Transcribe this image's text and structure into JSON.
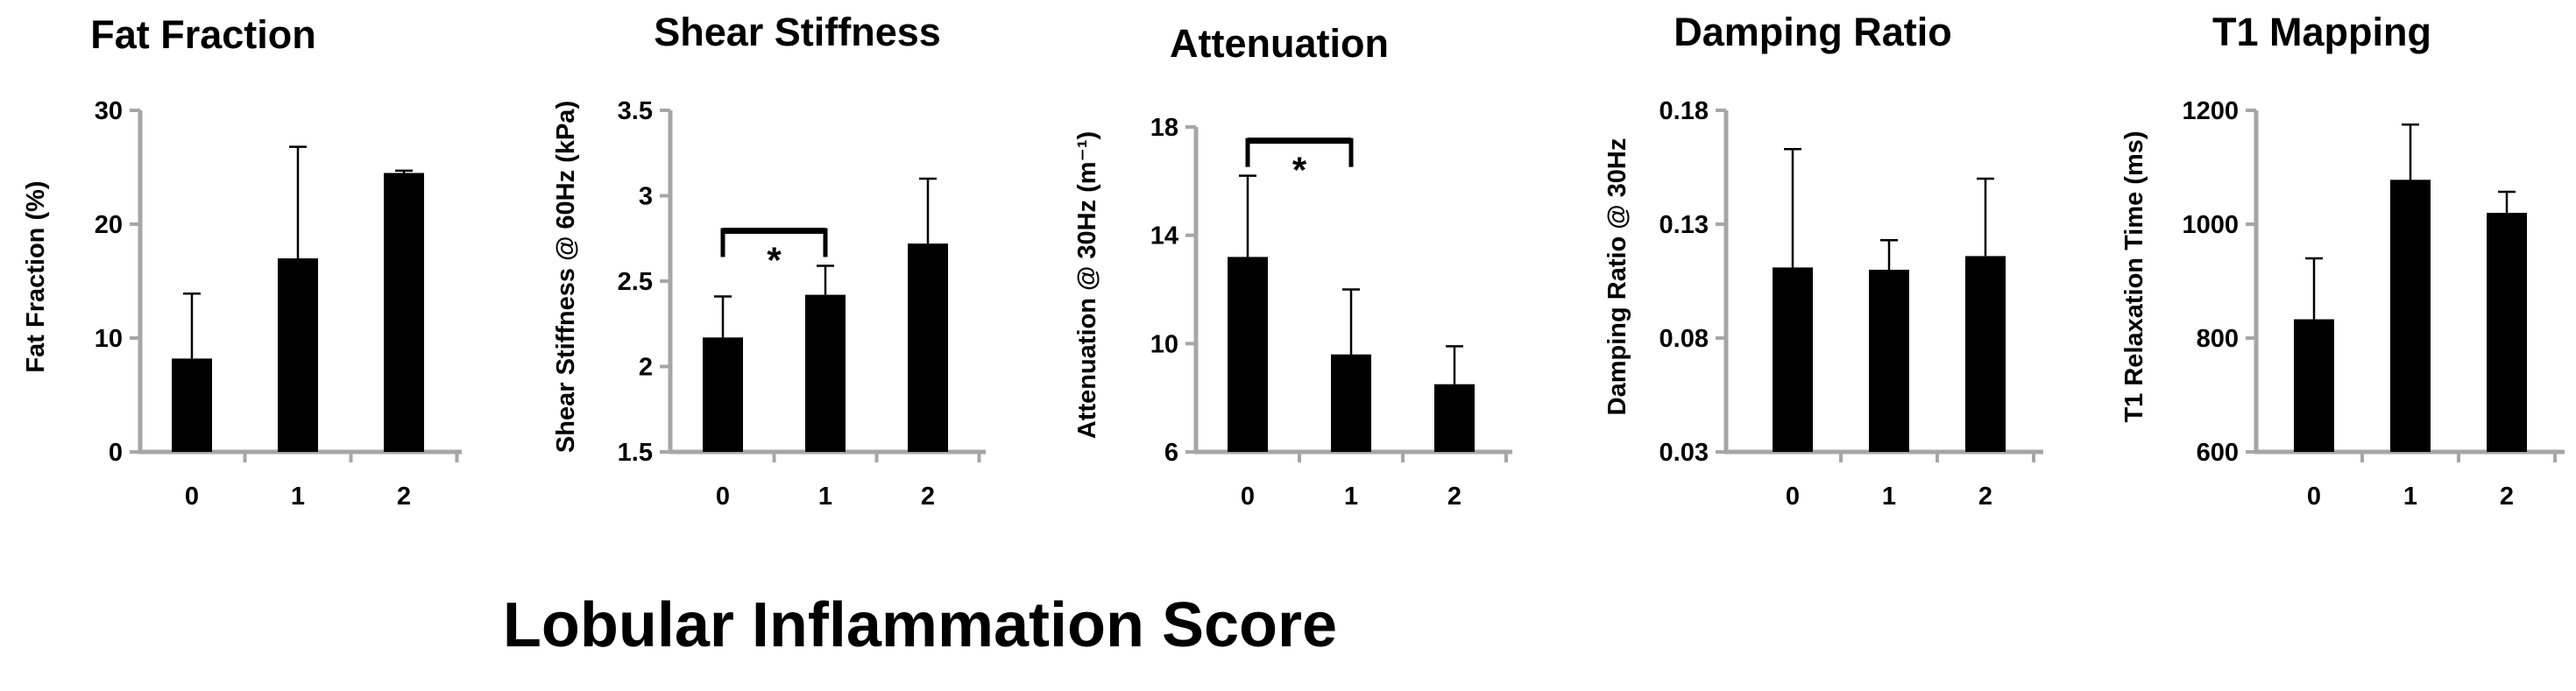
{
  "figure": {
    "x_title": "Lobular Inflammation Score"
  },
  "chart_data": [
    {
      "type": "bar",
      "title": "Fat Fraction",
      "ylabel": "Fat Fraction (%)",
      "xlabel": "",
      "categories": [
        "0",
        "1",
        "2"
      ],
      "values": [
        8.2,
        17.0,
        24.5
      ],
      "errors": [
        5.7,
        9.8,
        0.2
      ],
      "ylim": [
        0,
        30
      ],
      "yticks": [
        0,
        10,
        20,
        30
      ],
      "ytick_labels": [
        "0",
        "10",
        "20",
        "30"
      ],
      "significance": []
    },
    {
      "type": "bar",
      "title": "Shear Stiffness",
      "ylabel": "Shear Stiffness @ 60Hz (kPa)",
      "xlabel": "",
      "categories": [
        "0",
        "1",
        "2"
      ],
      "values": [
        2.17,
        2.42,
        2.72
      ],
      "errors": [
        0.24,
        0.17,
        0.38
      ],
      "ylim": [
        1.5,
        3.5
      ],
      "yticks": [
        1.5,
        2,
        2.5,
        3,
        3.5
      ],
      "ytick_labels": [
        "1.5",
        "2",
        "2.5",
        "3",
        "3.5"
      ],
      "significance": [
        {
          "from": 0,
          "to": 1,
          "label": "*"
        }
      ]
    },
    {
      "type": "bar",
      "title": "Attenuation",
      "ylabel": "Attenuation @ 30Hz (m⁻¹)",
      "xlabel": "",
      "categories": [
        "0",
        "1",
        "2"
      ],
      "values": [
        13.2,
        9.6,
        8.5
      ],
      "errors": [
        3.0,
        2.4,
        1.4
      ],
      "ylim": [
        6,
        18
      ],
      "yticks": [
        6,
        10,
        14,
        18
      ],
      "ytick_labels": [
        "6",
        "10",
        "14",
        "18"
      ],
      "significance": [
        {
          "from": 0,
          "to": 1,
          "label": "*"
        }
      ]
    },
    {
      "type": "bar",
      "title": "Damping Ratio",
      "ylabel": "Damping Ratio @ 30Hz",
      "xlabel": "",
      "categories": [
        "0",
        "1",
        "2"
      ],
      "values": [
        0.111,
        0.11,
        0.116
      ],
      "errors": [
        0.052,
        0.013,
        0.034
      ],
      "ylim": [
        0.03,
        0.18
      ],
      "yticks": [
        0.03,
        0.08,
        0.13,
        0.18
      ],
      "ytick_labels": [
        "0.03",
        "0.08",
        "0.13",
        "0.18"
      ],
      "significance": []
    },
    {
      "type": "bar",
      "title": "T1 Mapping",
      "ylabel": "T1 Relaxation Time (ms)",
      "xlabel": "",
      "categories": [
        "0",
        "1",
        "2"
      ],
      "values": [
        833,
        1078,
        1020
      ],
      "errors": [
        107,
        97,
        37
      ],
      "ylim": [
        600,
        1200
      ],
      "yticks": [
        600,
        800,
        1000,
        1200
      ],
      "ytick_labels": [
        "600",
        "800",
        "1000",
        "1200"
      ],
      "significance": []
    }
  ],
  "colors": {
    "bar": "#000000",
    "axis": "#a6a6a6",
    "text": "#000000"
  }
}
